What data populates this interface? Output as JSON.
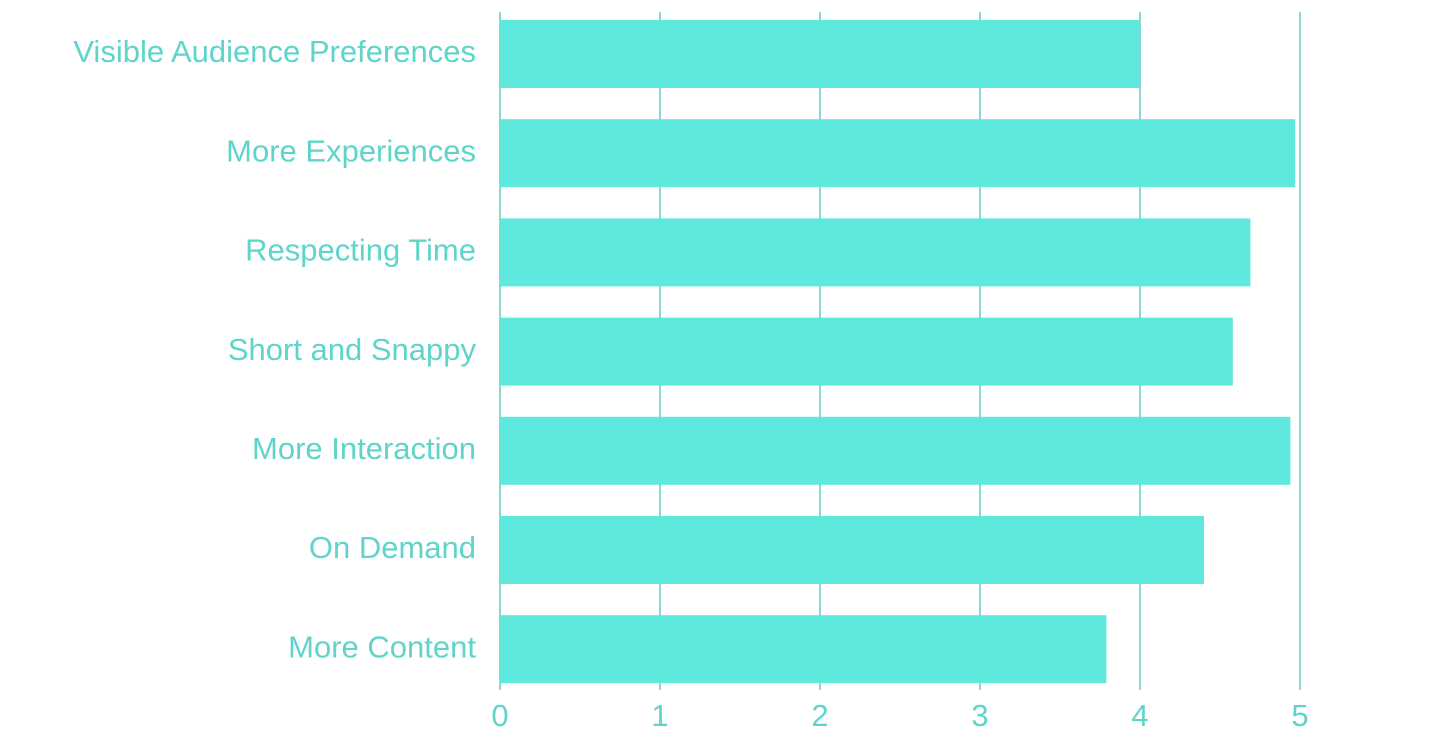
{
  "chart_data": {
    "type": "bar",
    "orientation": "horizontal",
    "categories": [
      "Visible Audience Preferences",
      "More Experiences",
      "Respecting Time",
      "Short and Snappy",
      "More Interaction",
      "On Demand",
      "More Content"
    ],
    "values": [
      4.0,
      4.97,
      4.69,
      4.58,
      4.94,
      4.4,
      3.79
    ],
    "color": "#5fe8de",
    "xlim": [
      0,
      5
    ],
    "xticks": [
      0,
      1,
      2,
      3,
      4,
      5
    ],
    "grid": true
  }
}
